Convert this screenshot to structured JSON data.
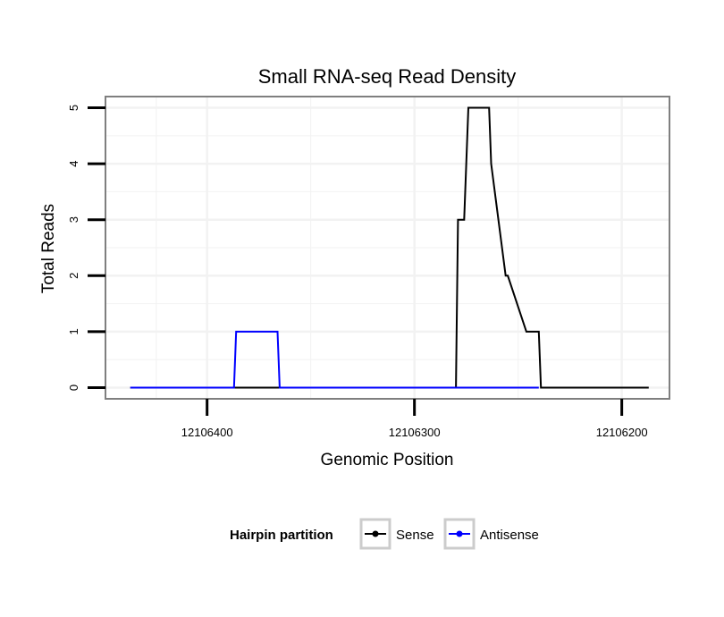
{
  "chart_data": {
    "type": "line",
    "title": "Small RNA-seq Read Density",
    "xlabel": "Genomic Position",
    "ylabel": "Total Reads",
    "x_reversed": true,
    "xlim": [
      12106449,
      12106177
    ],
    "ylim": [
      -0.2,
      5.2
    ],
    "xticks": [
      12106400,
      12106300,
      12106200
    ],
    "xtick_labels": [
      "12106400",
      "12106300",
      "12106200"
    ],
    "yticks": [
      0,
      1,
      2,
      3,
      4,
      5
    ],
    "ytick_labels": [
      "0",
      "1",
      "2",
      "3",
      "4",
      "5"
    ],
    "grid": true,
    "legend_title": "Hairpin partition",
    "legend_position": "bottom",
    "series": [
      {
        "name": "Sense",
        "color": "#000000",
        "x": [
          12106437,
          12106341,
          12106340,
          12106337,
          12106336,
          12106330,
          12106329,
          12106299,
          12106298,
          12106295,
          12106294,
          12106285,
          12106283,
          12106282,
          12106280,
          12106279,
          12106277,
          12106276,
          12106274,
          12106273,
          12106271,
          12106270,
          12106264,
          12106263,
          12106256,
          12106255,
          12106246,
          12106245,
          12106240,
          12106239,
          12106187
        ],
        "y": [
          0,
          0,
          0,
          0,
          0,
          0,
          0,
          0,
          0,
          0,
          0,
          0,
          0,
          0,
          0,
          3,
          3,
          3,
          5,
          5,
          5,
          5,
          5,
          4,
          2,
          2,
          1,
          1,
          1,
          0,
          0
        ]
      },
      {
        "name": "Antisense",
        "color": "#0000ff",
        "x": [
          12106437,
          12106387,
          12106386,
          12106372,
          12106366,
          12106365,
          12106360,
          12106240
        ],
        "y": [
          0,
          0,
          1,
          1,
          1,
          0,
          0,
          0
        ]
      }
    ]
  }
}
